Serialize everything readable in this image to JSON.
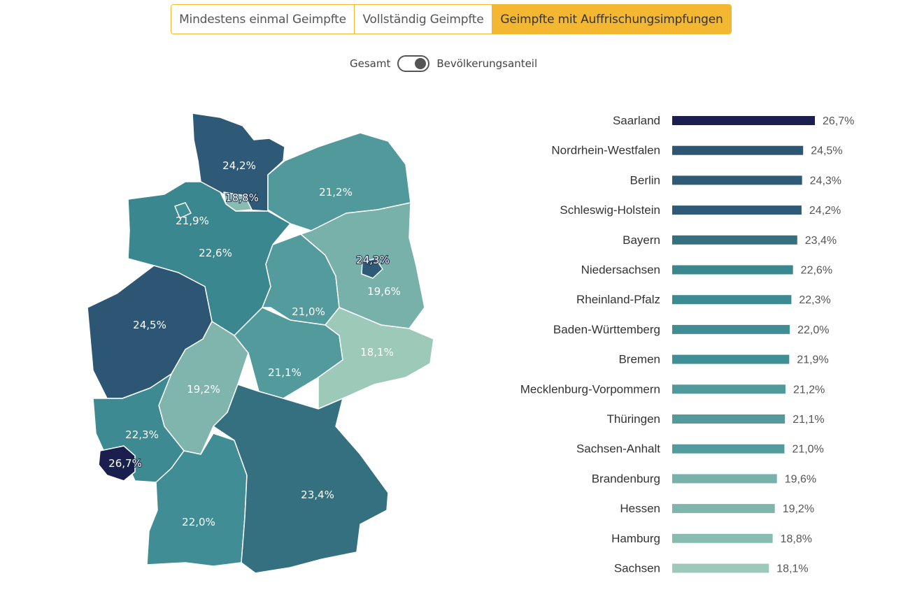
{
  "tabs": [
    {
      "label": "Mindestens einmal Geimpfte",
      "active": false
    },
    {
      "label": "Vollständig Geimpfte",
      "active": false
    },
    {
      "label": "Geimpfte mit Auffrischungsimpfungen",
      "active": true
    }
  ],
  "toggle": {
    "left_label": "Gesamt",
    "right_label": "Bevölkerungsanteil",
    "state": "right"
  },
  "colors": {
    "accent": "#f4b731"
  },
  "chart_data": {
    "type": "bar",
    "orientation": "horizontal",
    "categories": [
      "Saarland",
      "Nordrhein-Westfalen",
      "Berlin",
      "Schleswig-Holstein",
      "Bayern",
      "Niedersachsen",
      "Rheinland-Pfalz",
      "Baden-Württemberg",
      "Bremen",
      "Mecklenburg-Vorpommern",
      "Thüringen",
      "Sachsen-Anhalt",
      "Brandenburg",
      "Hessen",
      "Hamburg",
      "Sachsen"
    ],
    "values": [
      26.7,
      24.5,
      24.3,
      24.2,
      23.4,
      22.6,
      22.3,
      22.0,
      21.9,
      21.2,
      21.1,
      21.0,
      19.6,
      19.2,
      18.8,
      18.1
    ],
    "labels": [
      "26,7%",
      "24,5%",
      "24,3%",
      "24,2%",
      "23,4%",
      "22,6%",
      "22,3%",
      "22,0%",
      "21,9%",
      "21,2%",
      "21,1%",
      "21,0%",
      "19,6%",
      "19,2%",
      "18,8%",
      "18,1%"
    ],
    "colors": [
      "#1b1f4f",
      "#2d5675",
      "#2e5a78",
      "#2e5a78",
      "#34707f",
      "#3b8790",
      "#3d8a92",
      "#408d95",
      "#418f96",
      "#52999c",
      "#539a9d",
      "#549b9e",
      "#78b0aa",
      "#7fb5ad",
      "#89bcb1",
      "#9cc9b8"
    ],
    "unit": "%",
    "title": "",
    "xlabel": "",
    "ylabel": ""
  }
}
